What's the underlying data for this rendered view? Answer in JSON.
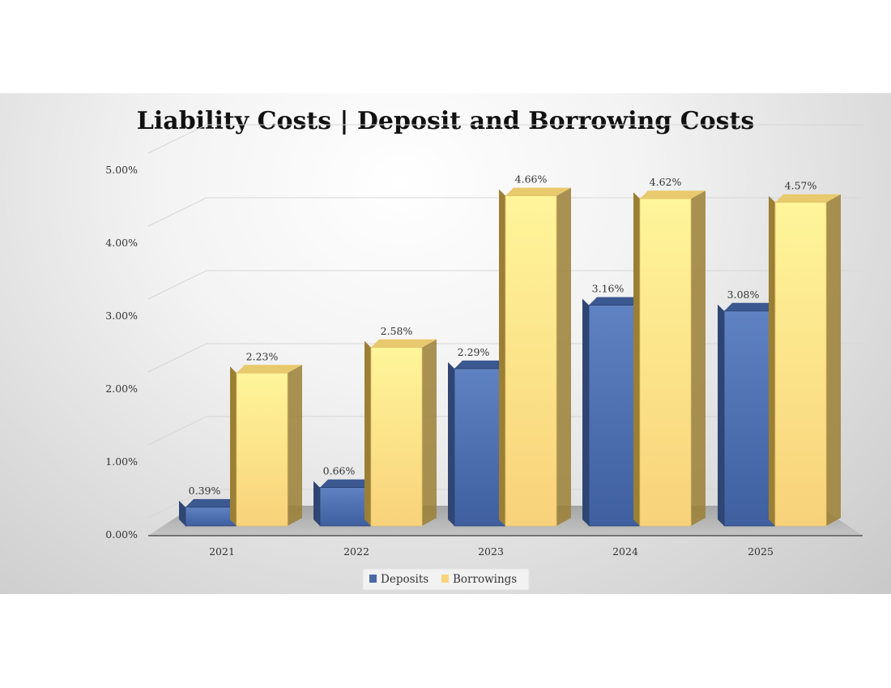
{
  "chart_data": {
    "type": "bar",
    "title": "Liability Costs | Deposit and Borrowing Costs",
    "categories": [
      "2021",
      "2022",
      "2023",
      "2024",
      "2025"
    ],
    "series": [
      {
        "name": "Deposits",
        "values": [
          0.39,
          0.66,
          2.29,
          3.16,
          3.08
        ],
        "labels": [
          "0.39%",
          "0.66%",
          "2.29%",
          "3.16%",
          "3.08%"
        ],
        "color": "#4a6aa9"
      },
      {
        "name": "Borrowings",
        "values": [
          2.23,
          2.58,
          4.66,
          4.62,
          4.57
        ],
        "labels": [
          "2.23%",
          "2.58%",
          "4.66%",
          "4.62%",
          "4.57%"
        ],
        "color": "#f7d47b"
      }
    ],
    "yticks": [
      "0.00%",
      "1.00%",
      "2.00%",
      "3.00%",
      "4.00%",
      "5.00%"
    ],
    "ylim": [
      0,
      5
    ],
    "grid": true,
    "legend": "bottom",
    "style": "3d-column"
  }
}
